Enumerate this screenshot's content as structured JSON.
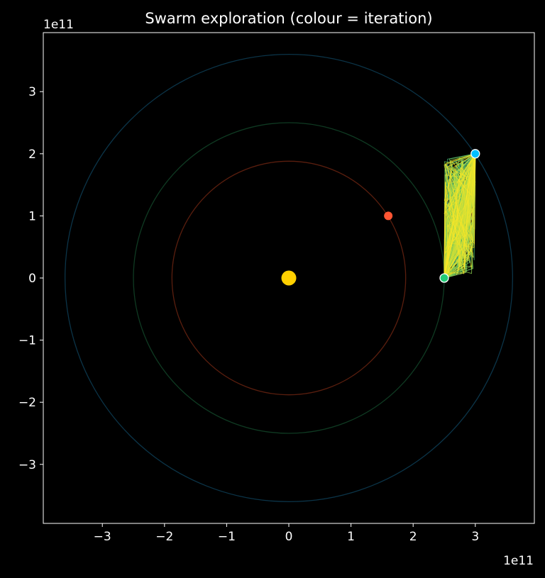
{
  "chart_data": {
    "type": "scatter",
    "title": "Swarm exploration (colour = iteration)",
    "xlabel": "",
    "ylabel": "",
    "x_offset_text": "1e11",
    "y_offset_text": "1e11",
    "xlim": [
      -395000000000.0,
      395000000000.0
    ],
    "ylim": [
      -395000000000.0,
      395000000000.0
    ],
    "xticks": [
      -300000000000.0,
      -200000000000.0,
      -100000000000.0,
      0,
      100000000000.0,
      200000000000.0,
      300000000000.0
    ],
    "yticks": [
      -300000000000.0,
      -200000000000.0,
      -100000000000.0,
      0,
      100000000000.0,
      200000000000.0,
      300000000000.0
    ],
    "xtick_labels": [
      "−3",
      "−2",
      "−1",
      "0",
      "1",
      "2",
      "3"
    ],
    "ytick_labels": [
      "−3",
      "−2",
      "−1",
      "0",
      "1",
      "2",
      "3"
    ],
    "grid": false,
    "background": "#000000",
    "orbits": [
      {
        "radius": 188000000000.0,
        "color": "#5a1e0e"
      },
      {
        "radius": 250000000000.0,
        "color": "#0f3a22"
      },
      {
        "radius": 360000000000.0,
        "color": "#0b3448"
      }
    ],
    "bodies": [
      {
        "x": 0,
        "y": 0,
        "color": "#ffd000",
        "edge": "#ffd000",
        "size": "large"
      },
      {
        "x": 160000000000.0,
        "y": 100000000000.0,
        "color": "#ff5533",
        "edge": "#ff5533",
        "size": "small"
      },
      {
        "x": 250000000000.0,
        "y": 0,
        "color": "#22cc77",
        "edge": "#ffffff",
        "size": "small"
      },
      {
        "x": 300000000000.0,
        "y": 200000000000.0,
        "color": "#00bfff",
        "edge": "#ffffff",
        "size": "small"
      }
    ],
    "swarm": {
      "x_range": [
        250000000000.0,
        300000000000.0
      ],
      "y_range": [
        0,
        200000000000.0
      ],
      "path_count": 140,
      "colormap": [
        "#440154",
        "#3b528b",
        "#21918c",
        "#5ec962",
        "#fde725"
      ]
    }
  }
}
